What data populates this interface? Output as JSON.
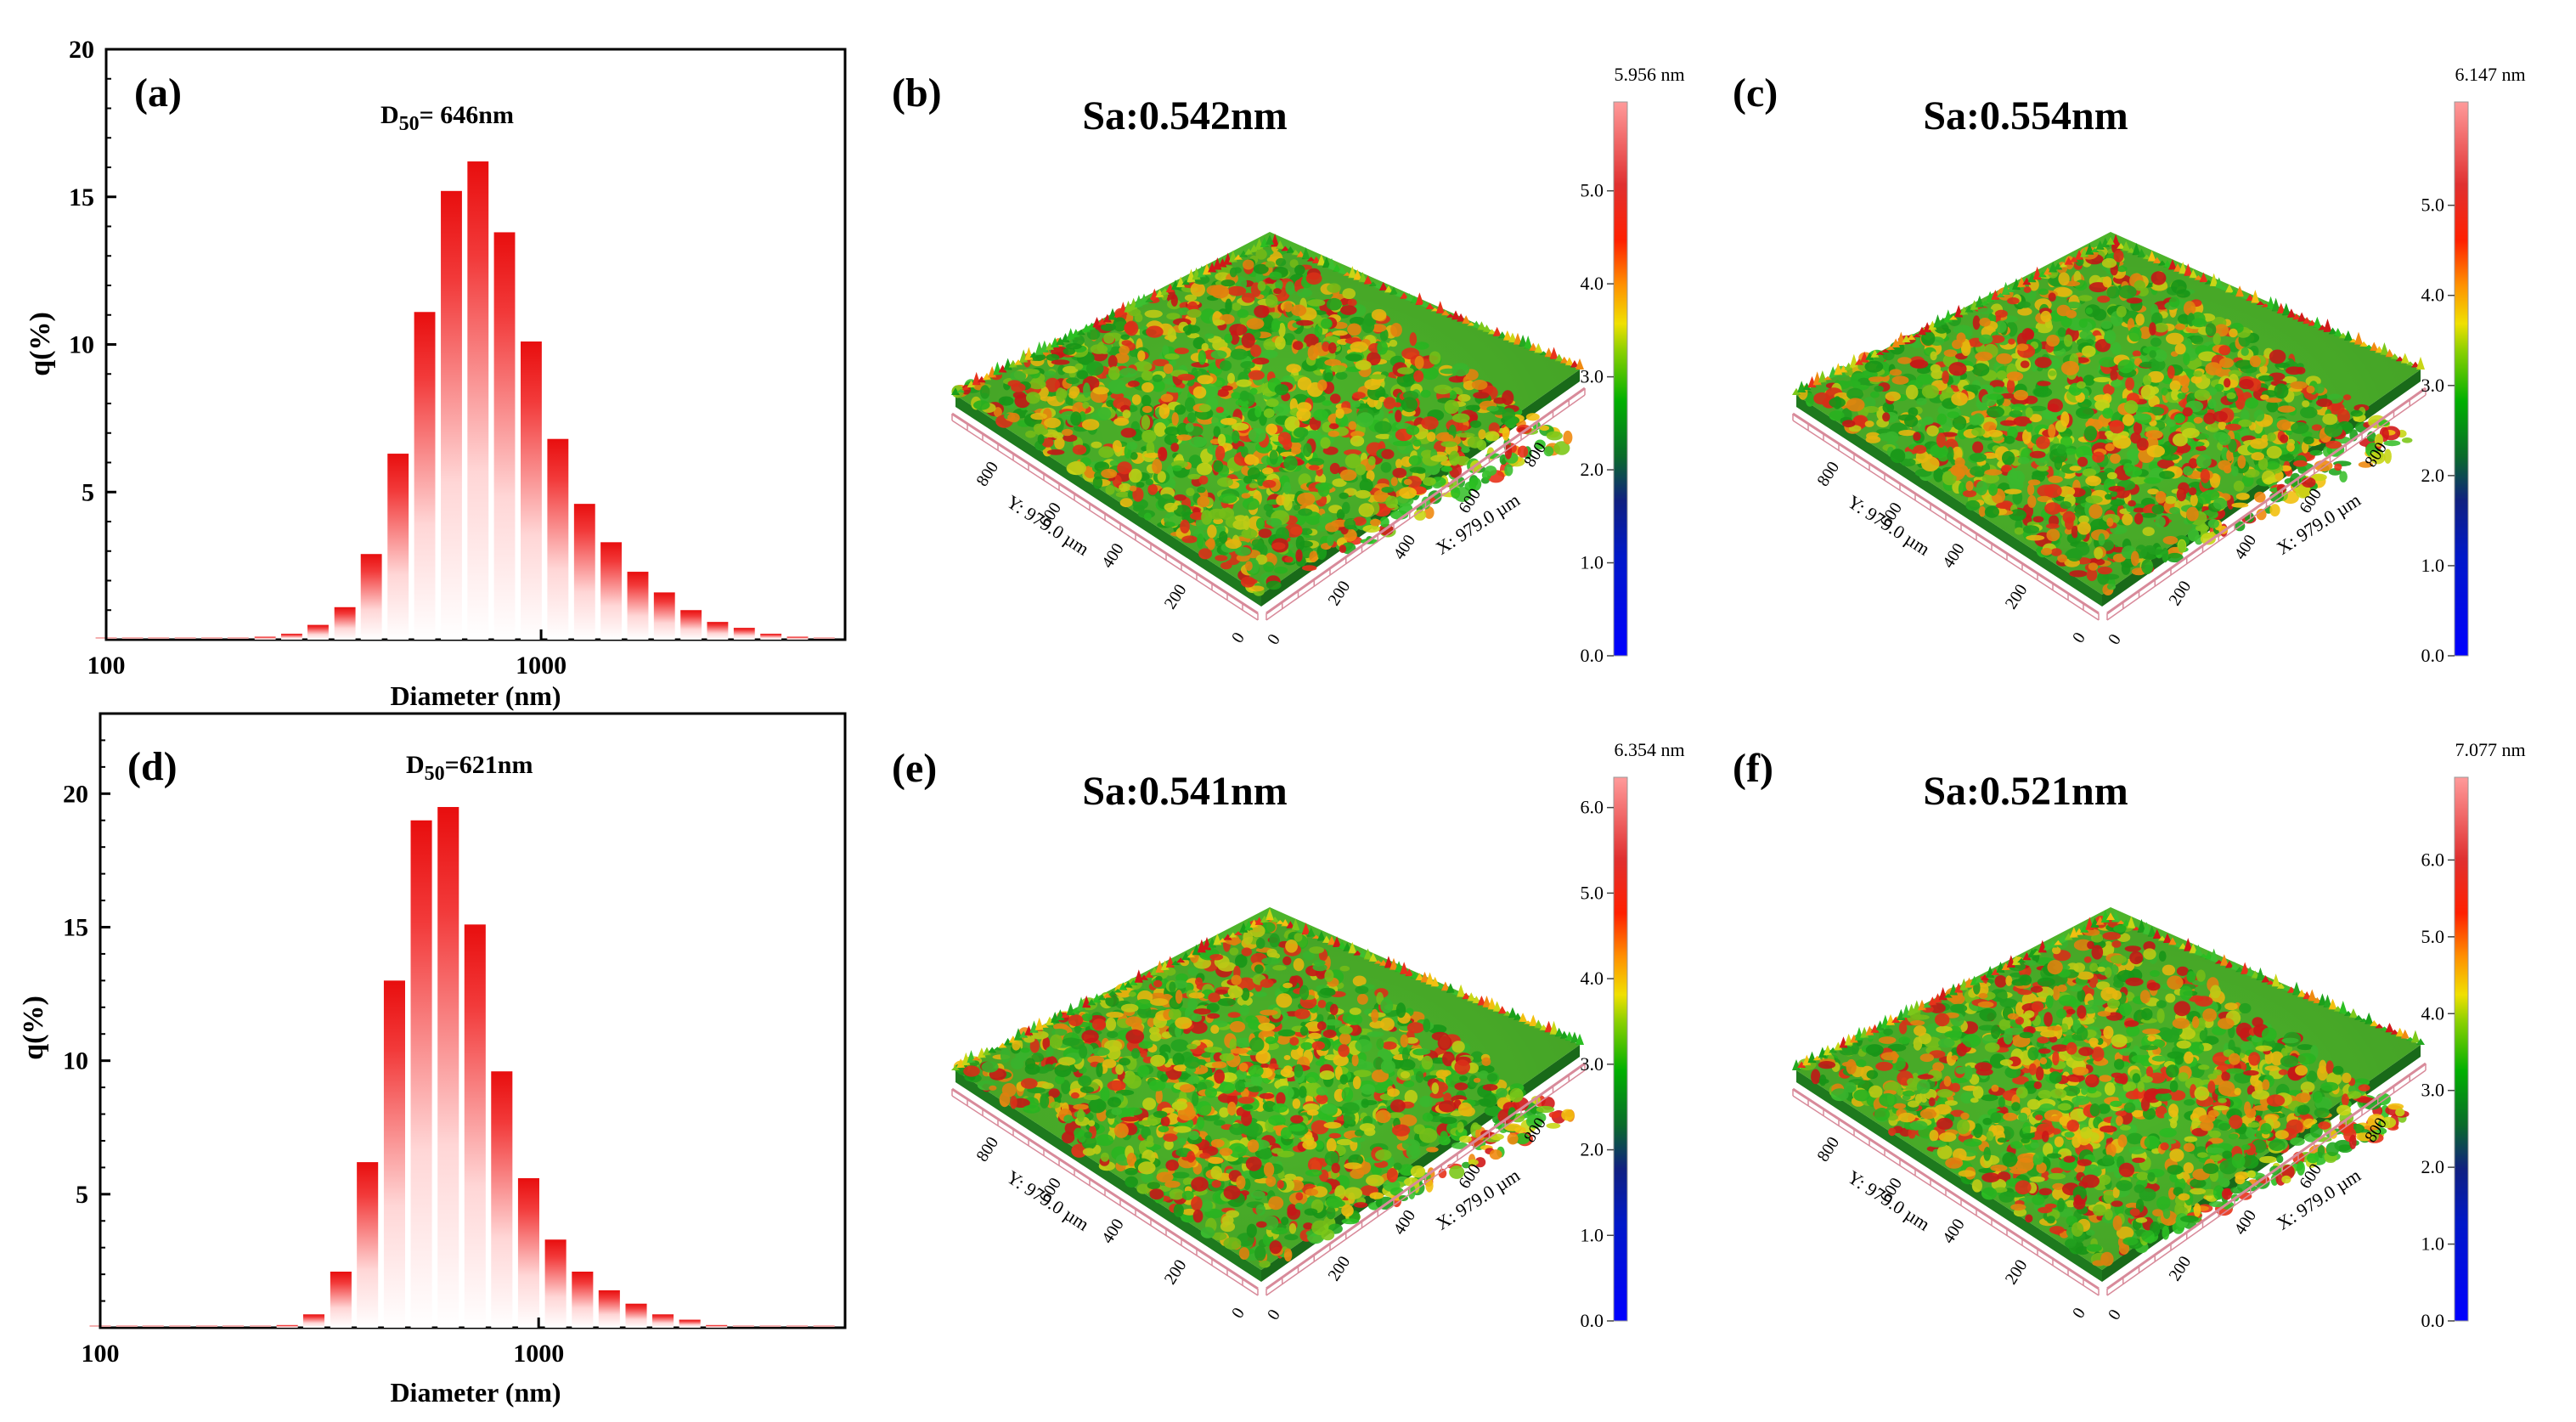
{
  "chart_data": [
    {
      "type": "bar",
      "panel": "(a)",
      "annotation": {
        "prefix": "D",
        "sub": "50",
        "text": "= 646nm"
      },
      "xlabel": "Diameter (nm)",
      "ylabel": "q(%)",
      "xscale": "log",
      "xlim": [
        100,
        5000
      ],
      "ylim": [
        0,
        20
      ],
      "xticks": [
        {
          "v": 100,
          "label": "100"
        },
        {
          "v": 1000,
          "label": "1000"
        }
      ],
      "yticks": [
        {
          "v": 5,
          "label": "5"
        },
        {
          "v": 10,
          "label": "10"
        },
        {
          "v": 15,
          "label": "15"
        },
        {
          "v": 20,
          "label": "20"
        }
      ],
      "x": [
        100,
        115,
        132,
        152,
        175,
        201,
        232,
        267,
        307,
        354,
        407,
        469,
        540,
        622,
        716,
        824,
        949,
        1093,
        1259,
        1449,
        1669,
        1921,
        2212,
        2546,
        2932,
        3376,
        3887,
        4475
      ],
      "values": [
        0,
        0,
        0,
        0,
        0,
        0,
        0.1,
        0.2,
        0.5,
        1.1,
        2.9,
        6.3,
        11.1,
        15.2,
        16.2,
        13.8,
        10.1,
        6.8,
        4.6,
        3.3,
        2.3,
        1.6,
        1.0,
        0.6,
        0.4,
        0.2,
        0.1,
        0
      ]
    },
    {
      "type": "bar",
      "panel": "(d)",
      "annotation": {
        "prefix": "D",
        "sub": "50",
        "text": "=621nm"
      },
      "xlabel": "Diameter (nm)",
      "ylabel": "q(%)",
      "xscale": "log",
      "xlim": [
        100,
        5000
      ],
      "ylim": [
        0,
        23
      ],
      "xticks": [
        {
          "v": 100,
          "label": "100"
        },
        {
          "v": 1000,
          "label": "1000"
        }
      ],
      "yticks": [
        {
          "v": 5,
          "label": "5"
        },
        {
          "v": 10,
          "label": "10"
        },
        {
          "v": 15,
          "label": "15"
        },
        {
          "v": 20,
          "label": "20"
        }
      ],
      "x": [
        100,
        115,
        132,
        152,
        175,
        201,
        232,
        267,
        307,
        354,
        407,
        469,
        540,
        622,
        716,
        824,
        949,
        1093,
        1259,
        1449,
        1669,
        1921,
        2212,
        2546,
        2932,
        3376,
        3887,
        4475
      ],
      "values": [
        0,
        0,
        0,
        0,
        0,
        0,
        0,
        0.1,
        0.5,
        2.1,
        6.2,
        13.0,
        19.0,
        19.5,
        15.1,
        9.6,
        5.6,
        3.3,
        2.1,
        1.4,
        0.9,
        0.5,
        0.3,
        0.1,
        0,
        0,
        0,
        0
      ]
    }
  ],
  "surfaces": [
    {
      "panel": "(b)",
      "sa": "Sa:0.542nm",
      "max_label": "5.956 nm",
      "max": 5.956,
      "ticks": [
        "0.0",
        "1.0",
        "2.0",
        "3.0",
        "4.0",
        "5.0"
      ],
      "x_axis": "X: 979.0 µm",
      "y_axis": "Y: 979.0 µm",
      "axis_ticks": [
        "0",
        "200",
        "400",
        "600",
        "800"
      ],
      "seed": 11
    },
    {
      "panel": "(c)",
      "sa": "Sa:0.554nm",
      "max_label": "6.147 nm",
      "max": 6.147,
      "ticks": [
        "0.0",
        "1.0",
        "2.0",
        "3.0",
        "4.0",
        "5.0"
      ],
      "x_axis": "X: 979.0 µm",
      "y_axis": "Y: 979.0 µm",
      "axis_ticks": [
        "0",
        "200",
        "400",
        "600",
        "800"
      ],
      "seed": 23
    },
    {
      "panel": "(e)",
      "sa": "Sa:0.541nm",
      "max_label": "6.354 nm",
      "max": 6.354,
      "ticks": [
        "0.0",
        "1.0",
        "2.0",
        "3.0",
        "4.0",
        "5.0",
        "6.0"
      ],
      "x_axis": "X: 979.0 µm",
      "y_axis": "Y: 979.0 µm",
      "axis_ticks": [
        "0",
        "200",
        "400",
        "600",
        "800"
      ],
      "seed": 37
    },
    {
      "panel": "(f)",
      "sa": "Sa:0.521nm",
      "max_label": "7.077 nm",
      "max": 7.077,
      "ticks": [
        "0.0",
        "1.0",
        "2.0",
        "3.0",
        "4.0",
        "5.0",
        "6.0"
      ],
      "x_axis": "X: 979.0 µm",
      "y_axis": "Y: 979.0 µm",
      "axis_ticks": [
        "0",
        "200",
        "400",
        "600",
        "800"
      ],
      "seed": 53
    }
  ]
}
